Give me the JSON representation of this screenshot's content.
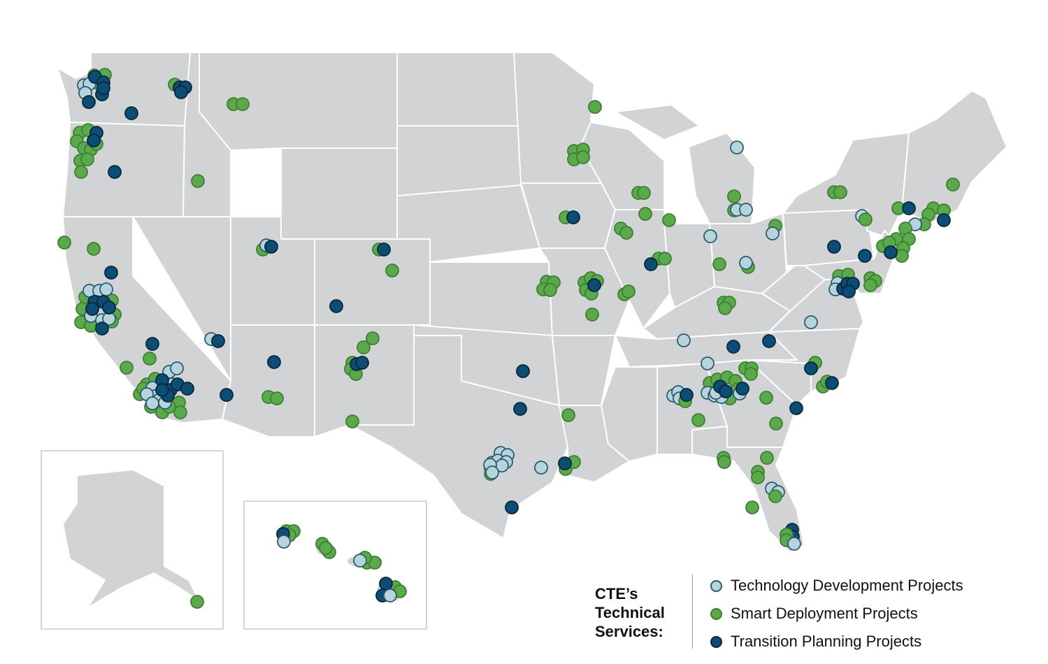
{
  "legend": {
    "title_lines": [
      "CTE’s",
      "Technical",
      "Services:"
    ],
    "items": [
      {
        "label": "Technology Development Projects",
        "color": "#b7d3dc",
        "stroke": "#2a5b70",
        "category": "tech"
      },
      {
        "label": "Smart Deployment Projects",
        "color": "#5aa94a",
        "stroke": "#3d7f31",
        "category": "smart"
      },
      {
        "label": "Transition Planning Projects",
        "color": "#0b4d74",
        "stroke": "#06273a",
        "category": "transition"
      }
    ]
  },
  "colors": {
    "land": "#d1d3d4",
    "borders": "#ffffff"
  },
  "regions": [
    "contiguous-united-states",
    "alaska-inset",
    "hawaii-inset"
  ]
}
